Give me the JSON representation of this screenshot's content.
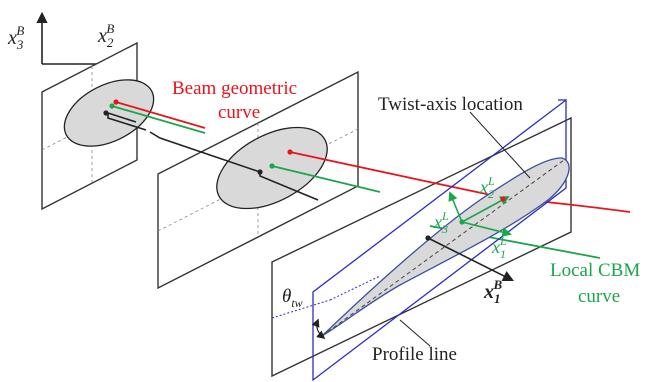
{
  "labels": {
    "beam_curve_line1": "Beam geometric",
    "beam_curve_line2": "curve",
    "twist_axis": "Twist-axis location",
    "local_cbm_line1": "Local CBM",
    "local_cbm_line2": "curve",
    "profile_line": "Profile line"
  },
  "symbols": {
    "x3B": {
      "base": "x",
      "sub": "3",
      "sup": "B"
    },
    "x2B": {
      "base": "x",
      "sub": "2",
      "sup": "B"
    },
    "x1B": {
      "base": "x",
      "sub": "1",
      "sup": "B"
    },
    "x1L": {
      "base": "x",
      "sub": "1",
      "sup": "L"
    },
    "x2L": {
      "base": "x",
      "sub": "2",
      "sup": "L"
    },
    "x3L": {
      "base": "x",
      "sub": "3",
      "sup": "L"
    },
    "theta": {
      "base": "θ",
      "sub": "tw"
    }
  },
  "colors": {
    "beam_curve": "#e8141b",
    "cbm_curve": "#1aa64a",
    "twist_axis": "#2b2bcc",
    "airfoil_outline": "#3a4fa0",
    "section_fill": "#d9d9d9",
    "ink": "#222222"
  }
}
